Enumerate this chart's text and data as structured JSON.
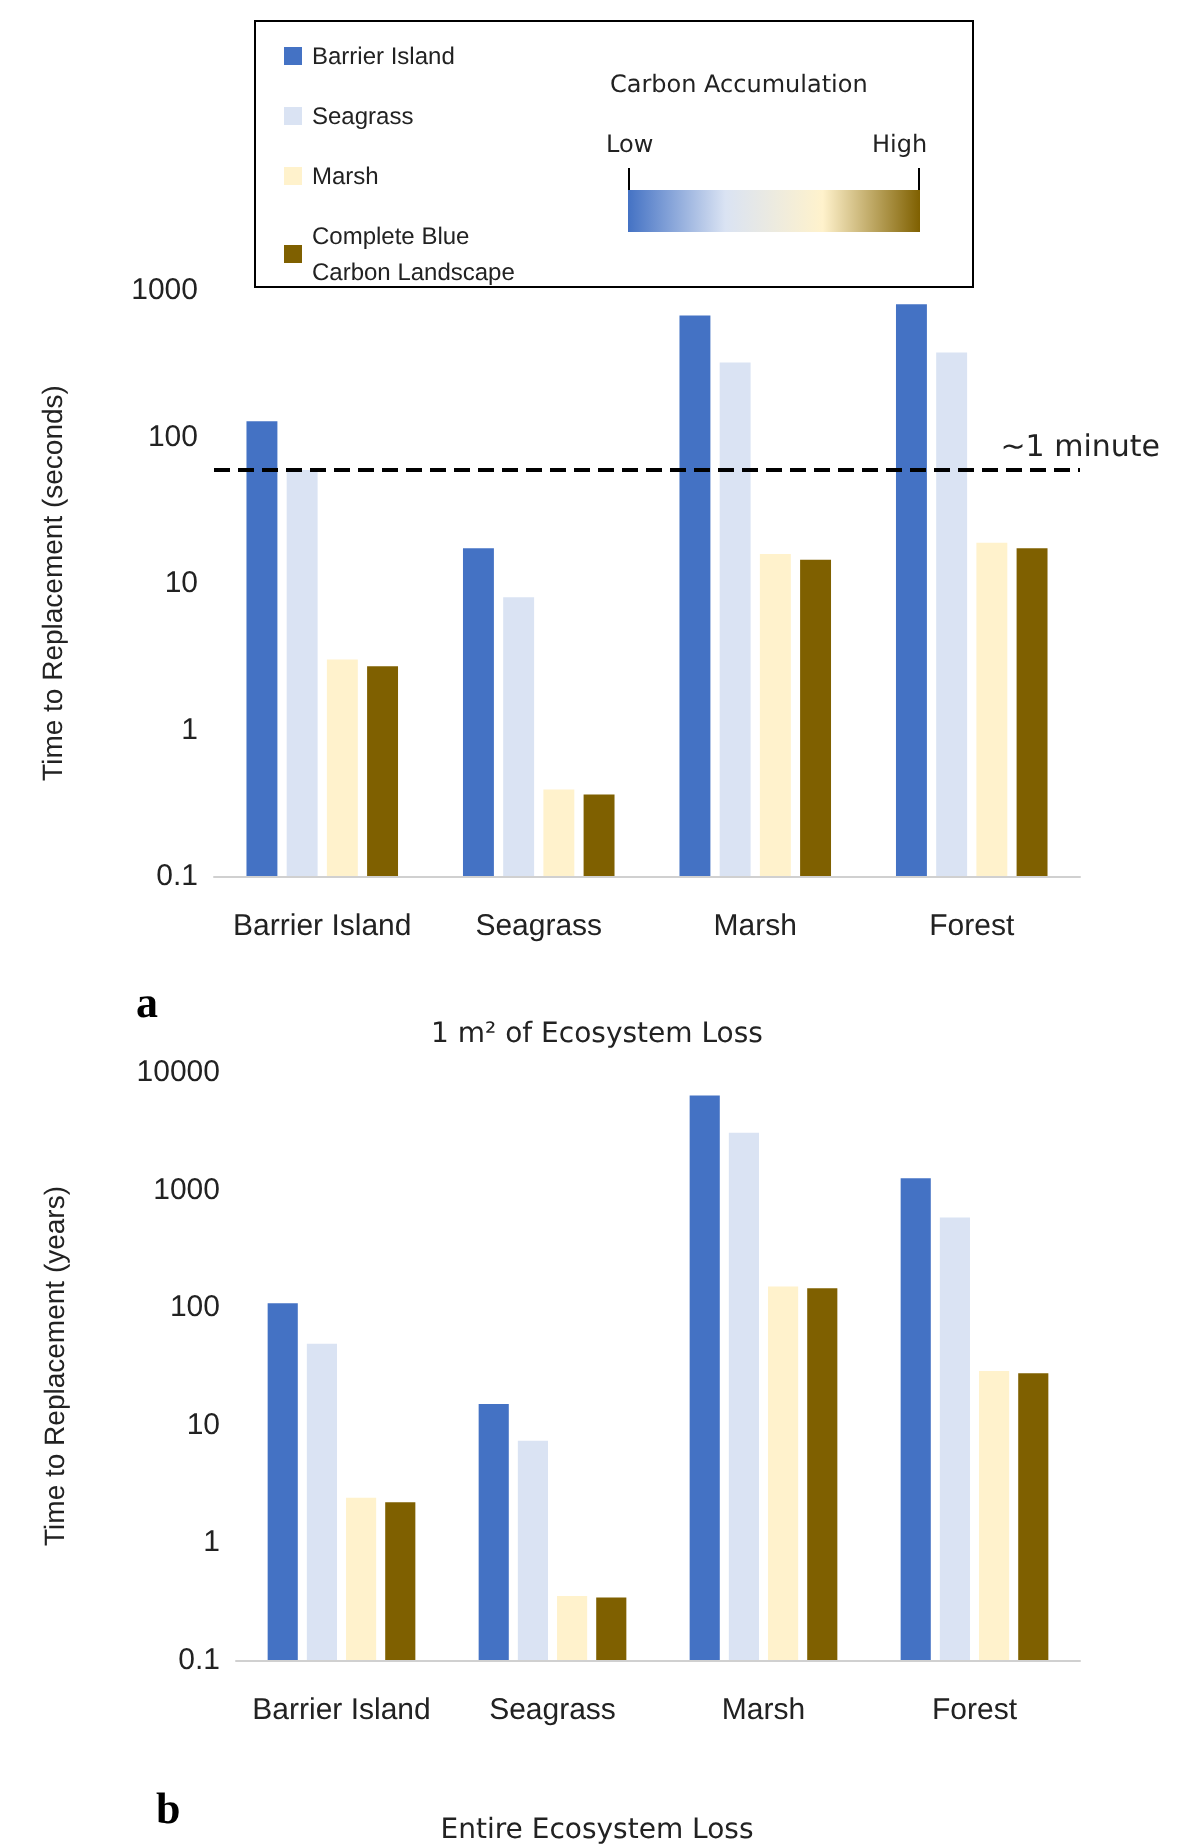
{
  "chart_data": [
    {
      "type": "bar",
      "xlabel": "1 m² of Ecosystem Loss",
      "ylabel": "Time to Replacement (seconds)",
      "categories": [
        "Barrier Island",
        "Seagrass",
        "Marsh",
        "Forest"
      ],
      "series": [
        {
          "name": "Barrier Island",
          "color": "#4472c4",
          "values": [
            127,
            17.3,
            670,
            800
          ]
        },
        {
          "name": "Seagrass",
          "color": "#dae3f3",
          "values": [
            59,
            8.0,
            320,
            375
          ]
        },
        {
          "name": "Marsh",
          "color": "#fff2cc",
          "values": [
            3.0,
            0.39,
            15.8,
            18.8
          ]
        },
        {
          "name": "Complete Blue Carbon Landscape",
          "color": "#7f6000",
          "values": [
            2.7,
            0.36,
            14.4,
            17.3
          ]
        }
      ],
      "log": "y",
      "ylim": [
        0.1,
        1000
      ],
      "yticks": [
        0.1,
        1,
        10,
        100,
        1000
      ],
      "grid": false,
      "legend": "top",
      "ref_lines": [
        {
          "axis": "y",
          "value": 60,
          "label": "~1 minute",
          "line_style": "dashed",
          "color": "#000000"
        }
      ],
      "annotations": [
        "a",
        "Carbon Accumulation",
        "Low",
        "High"
      ]
    },
    {
      "type": "bar",
      "xlabel": "Entire Ecosystem Loss",
      "ylabel": "Time to Replacement (years)",
      "categories": [
        "Barrier Island",
        "Seagrass",
        "Marsh",
        "Forest"
      ],
      "series": [
        {
          "color": "#4472c4",
          "values": [
            108,
            15,
            6300,
            1250
          ]
        },
        {
          "color": "#dae3f3",
          "values": [
            49,
            7.3,
            3050,
            580
          ]
        },
        {
          "color": "#fff2cc",
          "values": [
            2.4,
            0.35,
            150,
            28.7
          ]
        },
        {
          "color": "#7f6000",
          "values": [
            2.2,
            0.34,
            145,
            27.4
          ]
        }
      ],
      "log": "y",
      "ylim": [
        0.1,
        10000
      ],
      "yticks": [
        0.1,
        1,
        10,
        100,
        1000,
        10000
      ],
      "grid": false,
      "legend": false,
      "annotations": [
        "b"
      ]
    }
  ]
}
